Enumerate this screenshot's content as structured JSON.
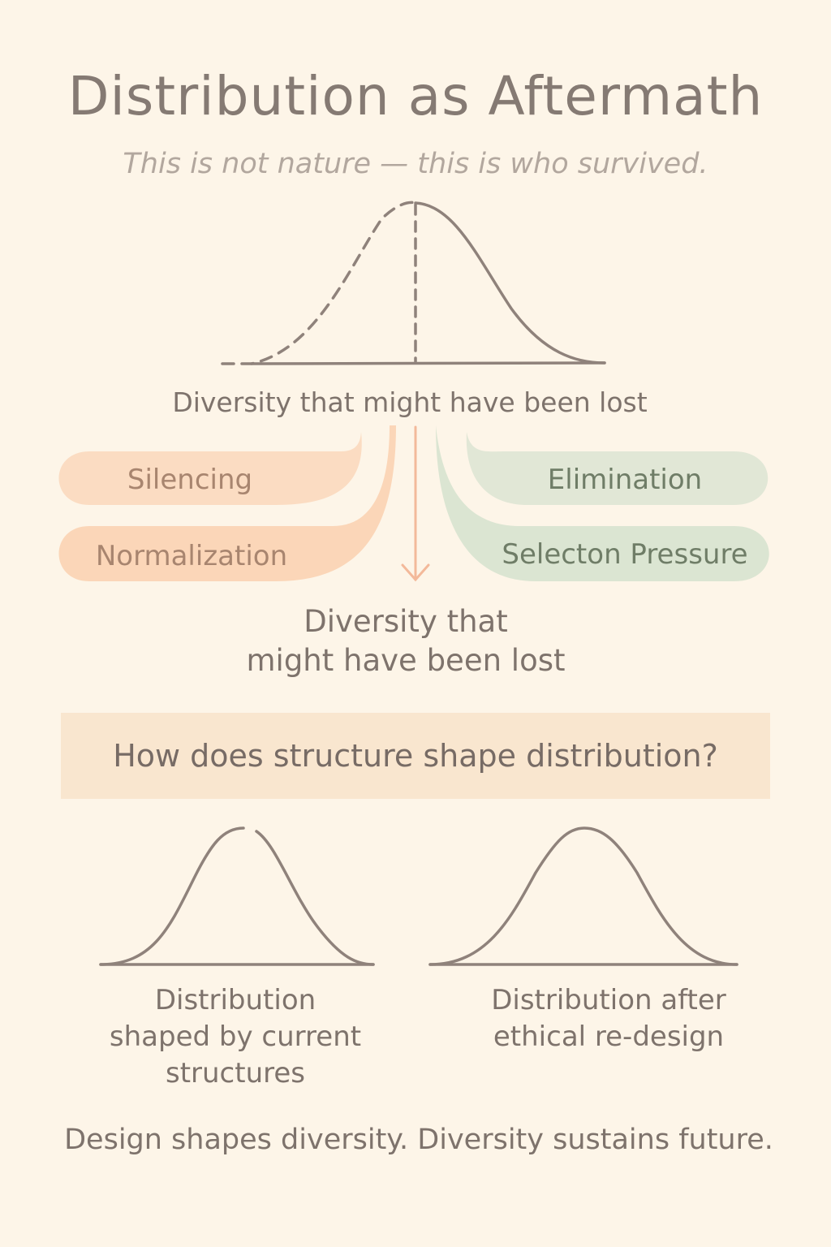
{
  "title": "Distribution as Aftermath",
  "subtitle": "This is not nature — this is who survived.",
  "top_caption": "Diversity that might have been lost",
  "forces": {
    "left": [
      "Silencing",
      "Normalization"
    ],
    "right": [
      "Elimination",
      "Selecton Pressure"
    ]
  },
  "mid_caption": {
    "line1": "Diversity that",
    "line2": "might have been lost"
  },
  "question": "How does structure shape distribution?",
  "bottom_left": {
    "line1": "Distribution",
    "line2": "shaped by current",
    "line3": "structures"
  },
  "bottom_right": {
    "line1": "Distribution after",
    "line2": "ethical re-design"
  },
  "footer": "Design shapes diversity. Diversity sustains future.",
  "colors": {
    "background": "#fdf5e8",
    "curve": "#8f827b",
    "peach": "#fbd9bd",
    "sage": "#dde6d2"
  }
}
